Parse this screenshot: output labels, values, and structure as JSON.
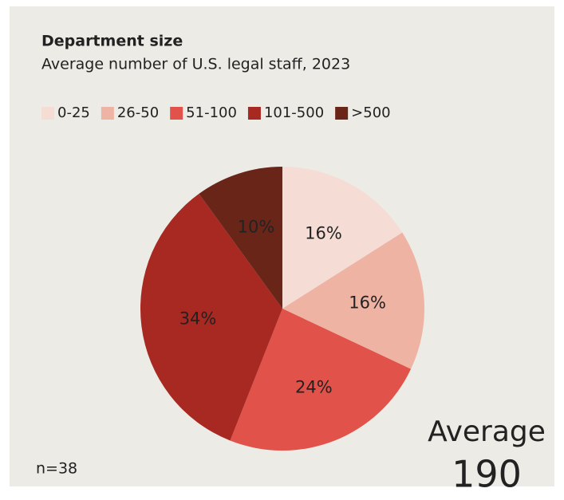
{
  "chart_data": {
    "type": "pie",
    "title": "Department size",
    "subtitle": "Average number of U.S. legal staff, 2023",
    "categories": [
      "0-25",
      "26-50",
      "51-100",
      "101-500",
      ">500"
    ],
    "values": [
      16,
      16,
      24,
      34,
      10
    ],
    "value_labels": [
      "16%",
      "16%",
      "24%",
      "34%",
      "10%"
    ],
    "colors": [
      "#f5ddd6",
      "#eeb3a3",
      "#e0524a",
      "#a82822",
      "#6a2519"
    ],
    "legend": "top-left",
    "note": "n=38",
    "annotation": {
      "label": "Average",
      "value": 190
    }
  }
}
